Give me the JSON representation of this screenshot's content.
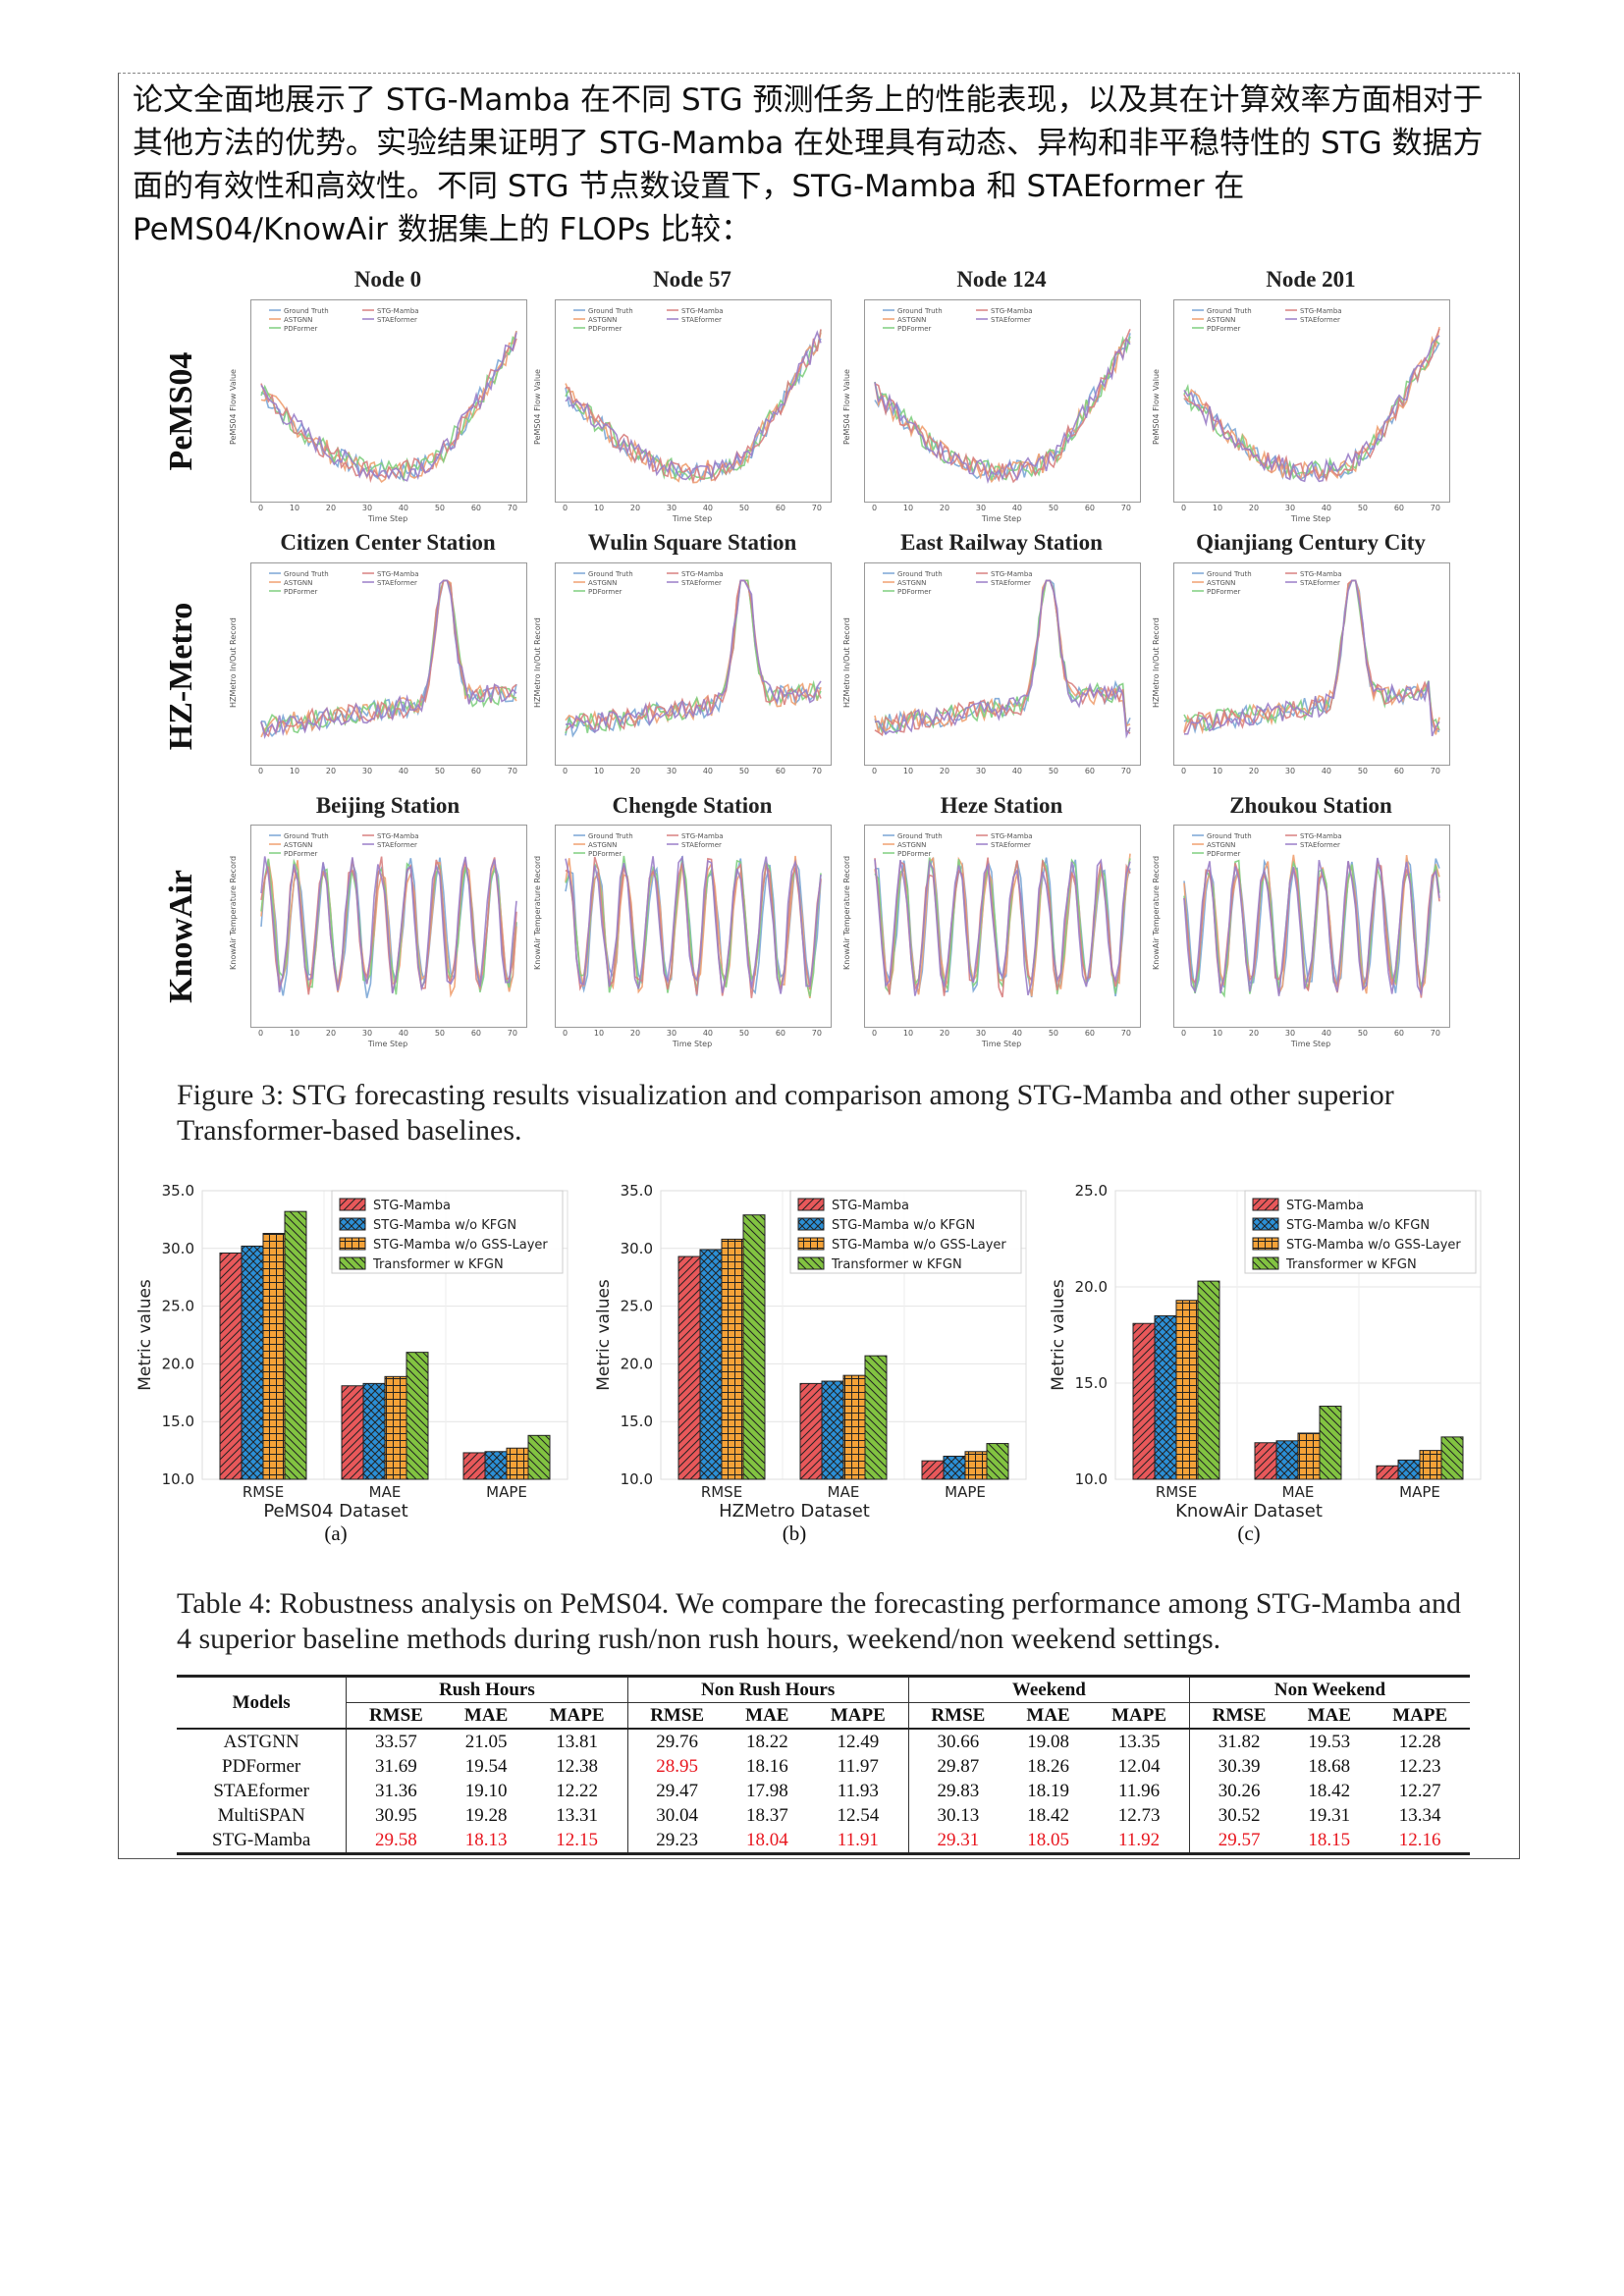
{
  "intro_text": "论文全面地展示了 STG-Mamba 在不同 STG 预测任务上的性能表现，以及其在计算效率方面相对于其他方法的优势。实验结果证明了 STG-Mamba 在处理具有动态、异构和非平稳特性的 STG 数据方面的有效性和高效性。不同 STG 节点数设置下，STG-Mamba 和 STAEformer 在 PeMS04/KnowAir 数据集上的 FLOPs 比较：",
  "figure3": {
    "caption": "Figure 3: STG forecasting results visualization and comparison among STG-Mamba and other superior Transformer-based baselines.",
    "rows": [
      {
        "label": "PeMS04",
        "ylabel": "PeMS04 Flow Value",
        "xlabel": "Time Step",
        "legend": [
          "Ground Truth",
          "ASTGNN",
          "PDFormer",
          "STG-Mamba",
          "STAEformer"
        ],
        "titles": [
          "Node 0",
          "Node 57",
          "Node 124",
          "Node 201"
        ]
      },
      {
        "label": "HZ-Metro",
        "ylabel": "HZMetro In/Out Record",
        "xlabel": "",
        "legend": [
          "Ground Truth",
          "ASTGNN",
          "PDFormer",
          "STG-Mamba",
          "STAEformer"
        ],
        "titles": [
          "Citizen Center Station",
          "Wulin Square Station",
          "East Railway Station",
          "Qianjiang Century City"
        ]
      },
      {
        "label": "KnowAir",
        "ylabel": "KnowAir Temperature Record",
        "xlabel": "Time Step",
        "legend": [
          "Ground Truth",
          "ASTGNN",
          "PDFormer",
          "STG-Mamba",
          "STAEformer"
        ],
        "titles": [
          "Beijing Station",
          "Chengde Station",
          "Heze Station",
          "Zhoukou Station"
        ]
      }
    ],
    "xticks": [
      "0",
      "10",
      "20",
      "30",
      "40",
      "50",
      "60",
      "70"
    ],
    "series_colors": [
      "#7aa6d6",
      "#f0a070",
      "#7fcf7f",
      "#d88080",
      "#9a7ec8"
    ]
  },
  "chart_data": [
    {
      "type": "bar",
      "title": "",
      "xlabel": "PeMS04 Dataset",
      "ylabel": "Metric values",
      "sublabel": "(a)",
      "categories": [
        "RMSE",
        "MAE",
        "MAPE"
      ],
      "ylim": [
        10.0,
        35.0
      ],
      "yticks": [
        "10.0",
        "15.0",
        "20.0",
        "25.0",
        "30.0",
        "35.0"
      ],
      "series": [
        {
          "name": "STG-Mamba",
          "values": [
            29.6,
            18.1,
            12.3
          ]
        },
        {
          "name": "STG-Mamba w/o KFGN",
          "values": [
            30.2,
            18.3,
            12.4
          ]
        },
        {
          "name": "STG-Mamba w/o GSS-Layer",
          "values": [
            31.3,
            18.9,
            12.7
          ]
        },
        {
          "name": "Transformer w KFGN",
          "values": [
            33.2,
            21.0,
            13.8
          ]
        }
      ]
    },
    {
      "type": "bar",
      "title": "",
      "xlabel": "HZMetro Dataset",
      "ylabel": "Metric values",
      "sublabel": "(b)",
      "categories": [
        "RMSE",
        "MAE",
        "MAPE"
      ],
      "ylim": [
        10.0,
        35.0
      ],
      "yticks": [
        "10.0",
        "15.0",
        "20.0",
        "25.0",
        "30.0",
        "35.0"
      ],
      "series": [
        {
          "name": "STG-Mamba",
          "values": [
            29.3,
            18.3,
            11.6
          ]
        },
        {
          "name": "STG-Mamba w/o KFGN",
          "values": [
            29.9,
            18.5,
            12.0
          ]
        },
        {
          "name": "STG-Mamba w/o GSS-Layer",
          "values": [
            30.8,
            19.0,
            12.4
          ]
        },
        {
          "name": "Transformer w KFGN",
          "values": [
            32.9,
            20.7,
            13.1
          ]
        }
      ]
    },
    {
      "type": "bar",
      "title": "",
      "xlabel": "KnowAir Dataset",
      "ylabel": "Metric values",
      "sublabel": "(c)",
      "categories": [
        "RMSE",
        "MAE",
        "MAPE"
      ],
      "ylim": [
        10.0,
        25.0
      ],
      "yticks": [
        "10.0",
        "15.0",
        "20.0",
        "25.0"
      ],
      "series": [
        {
          "name": "STG-Mamba",
          "values": [
            18.1,
            11.9,
            10.7
          ]
        },
        {
          "name": "STG-Mamba w/o KFGN",
          "values": [
            18.5,
            12.0,
            11.0
          ]
        },
        {
          "name": "STG-Mamba w/o GSS-Layer",
          "values": [
            19.3,
            12.4,
            11.5
          ]
        },
        {
          "name": "Transformer w KFGN",
          "values": [
            20.3,
            13.8,
            12.2
          ]
        }
      ]
    }
  ],
  "bar_colors": [
    "#e8585a",
    "#2b8fd6",
    "#f5a238",
    "#82c341"
  ],
  "table4": {
    "caption": "Table 4: Robustness analysis on PeMS04. We compare the forecasting performance among STG-Mamba and 4 superior baseline methods during rush/non rush hours, weekend/non weekend settings.",
    "models_header": "Models",
    "groups": [
      "Rush Hours",
      "Non Rush Hours",
      "Weekend",
      "Non Weekend"
    ],
    "metrics": [
      "RMSE",
      "MAE",
      "MAPE"
    ],
    "rows": [
      {
        "model": "ASTGNN",
        "values": [
          "33.57",
          "21.05",
          "13.81",
          "29.76",
          "18.22",
          "12.49",
          "30.66",
          "19.08",
          "13.35",
          "31.82",
          "19.53",
          "12.28"
        ],
        "red": []
      },
      {
        "model": "PDFormer",
        "values": [
          "31.69",
          "19.54",
          "12.38",
          "28.95",
          "18.16",
          "11.97",
          "29.87",
          "18.26",
          "12.04",
          "30.39",
          "18.68",
          "12.23"
        ],
        "red": [
          3
        ]
      },
      {
        "model": "STAEformer",
        "values": [
          "31.36",
          "19.10",
          "12.22",
          "29.47",
          "17.98",
          "11.93",
          "29.83",
          "18.19",
          "11.96",
          "30.26",
          "18.42",
          "12.27"
        ],
        "red": []
      },
      {
        "model": "MultiSPAN",
        "values": [
          "30.95",
          "19.28",
          "13.31",
          "30.04",
          "18.37",
          "12.54",
          "30.13",
          "18.42",
          "12.73",
          "30.52",
          "19.31",
          "13.34"
        ],
        "red": []
      },
      {
        "model": "STG-Mamba",
        "values": [
          "29.58",
          "18.13",
          "12.15",
          "29.23",
          "18.04",
          "11.91",
          "29.31",
          "18.05",
          "11.92",
          "29.57",
          "18.15",
          "12.16"
        ],
        "red": [
          0,
          1,
          2,
          4,
          5,
          6,
          7,
          8,
          9,
          10,
          11
        ]
      }
    ]
  }
}
